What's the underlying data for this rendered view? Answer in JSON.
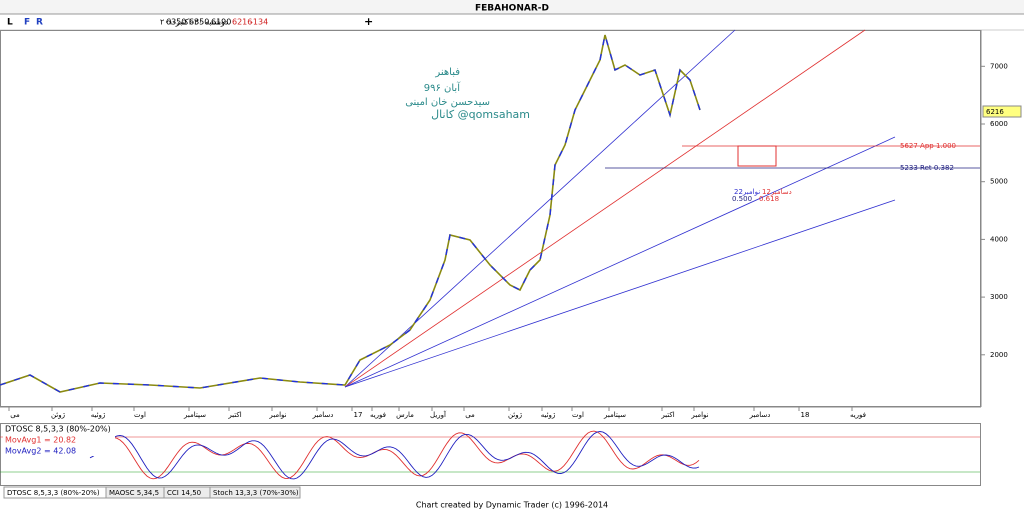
{
  "title": "FEBAHONAR-D",
  "toolbar": {
    "buttons": [
      "L",
      "F",
      "R"
    ],
    "date": "دوشنبه ۲۰-اکتبر-۲۰۱",
    "open": "6350",
    "high": "6350",
    "low": "6190",
    "close": "6216",
    "change": "-134",
    "plus": "+"
  },
  "annotation": [
    "فباهنر",
    "9آبان ۹۶",
    "سیدحسن خان امینی",
    "کانال @qomsaham"
  ],
  "price_axis": {
    "ticks": [
      7000,
      6000,
      5000,
      4000,
      3000,
      2000
    ],
    "current": "6216"
  },
  "levels": [
    "5627 App 1.000",
    "5233 Ret 0.382"
  ],
  "fib_labels": [
    "0.500",
    "0.618",
    "22نوامبر",
    "12دسامبر"
  ],
  "months": [
    "می",
    "ژوئن",
    "ژوئیه",
    "اوت",
    "سپتامبر",
    "اکتبر",
    "نوامبر",
    "دسامبر",
    "17",
    "فوریه",
    "مارس",
    "آوریل",
    "می",
    "ژوئن",
    "ژوئیه",
    "اوت",
    "سپتامبر",
    "اکتبر",
    "نوامبر",
    "دسامبر",
    "18",
    "فوریه"
  ],
  "indicator": {
    "name": "DTOSC 8,5,3,3 (80%-20%)",
    "ma1": "MovAvg1 = 20.82",
    "ma2": "MovAvg2 = 42.08"
  },
  "tabs": [
    "DTOSC 8,5,3,3 (80%-20%)",
    "MAOSC 5,34,5",
    "CCI 14,50",
    "Stoch 13,3,3 (70%-30%)"
  ],
  "footer": "Chart created by Dynamic Trader  (c)  1996-2014"
}
